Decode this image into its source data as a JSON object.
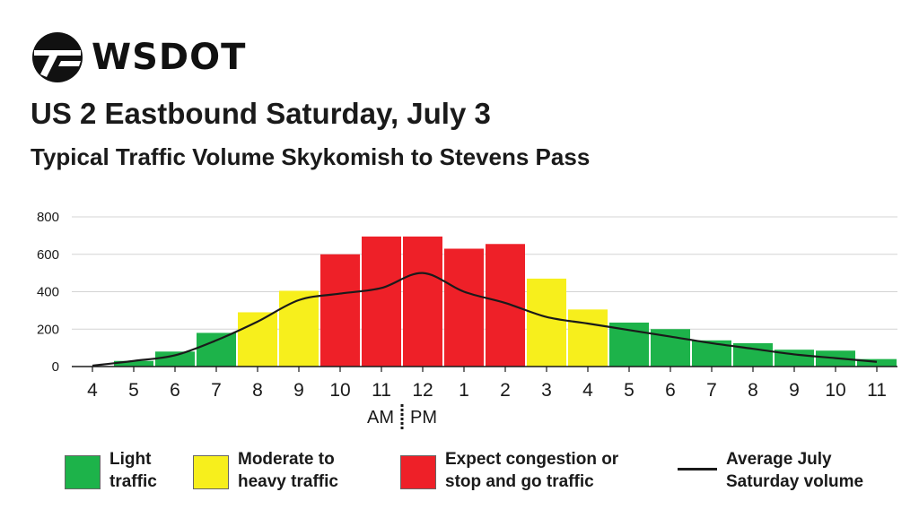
{
  "header": {
    "logo_text": "WSDOT",
    "title": "US 2 Eastbound Saturday, July 3",
    "subtitle": "Typical Traffic Volume Skykomish to Stevens Pass"
  },
  "colors": {
    "light": "#1db34a",
    "moderate": "#f7ef1c",
    "congestion": "#ee2028",
    "line": "#1a1a1a",
    "grid": "#d4d4d4"
  },
  "chart_data": {
    "type": "bar",
    "title": "US 2 Eastbound Saturday, July 3",
    "subtitle": "Typical Traffic Volume Skykomish to Stevens Pass",
    "ylim": [
      0,
      800
    ],
    "yticks": [
      0,
      200,
      400,
      600,
      800
    ],
    "grid": true,
    "categories": [
      "4",
      "5",
      "6",
      "7",
      "8",
      "9",
      "10",
      "11",
      "12",
      "1",
      "2",
      "3",
      "4",
      "5",
      "6",
      "7",
      "8",
      "9",
      "10",
      "11"
    ],
    "am_pm_divider": {
      "am_label": "AM",
      "pm_label": "PM",
      "between": [
        "11",
        "12"
      ]
    },
    "series": [
      {
        "values": [
          0,
          30,
          80,
          180,
          290,
          405,
          600,
          695,
          695,
          630,
          655,
          470,
          305,
          235,
          200,
          140,
          125,
          90,
          85,
          40
        ],
        "levels": [
          "light",
          "light",
          "light",
          "light",
          "moderate",
          "moderate",
          "congestion",
          "congestion",
          "congestion",
          "congestion",
          "congestion",
          "moderate",
          "moderate",
          "light",
          "light",
          "light",
          "light",
          "light",
          "light",
          "light"
        ]
      },
      {
        "name": "Average July Saturday volume",
        "type": "line",
        "values": [
          5,
          30,
          60,
          140,
          240,
          355,
          390,
          420,
          500,
          400,
          340,
          265,
          230,
          195,
          160,
          125,
          95,
          65,
          45,
          25
        ]
      }
    ]
  },
  "legend": [
    {
      "label": "Light\ntraffic",
      "level": "light"
    },
    {
      "label": "Moderate to\nheavy traffic",
      "level": "moderate"
    },
    {
      "label": "Expect congestion or\nstop and go traffic",
      "level": "congestion"
    },
    {
      "label": "Average July\nSaturday volume",
      "level": "line"
    }
  ]
}
